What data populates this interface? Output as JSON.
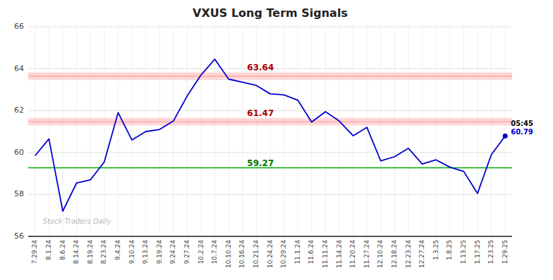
{
  "chart_data": {
    "type": "line",
    "title": "VXUS Long Term Signals",
    "categories": [
      "7.29.24",
      "8.1.24",
      "8.6.24",
      "8.14.24",
      "8.19.24",
      "8.23.24",
      "9.4.24",
      "9.10.24",
      "9.13.24",
      "9.19.24",
      "9.24.24",
      "9.27.24",
      "10.2.24",
      "10.7.24",
      "10.10.24",
      "10.16.24",
      "10.21.24",
      "10.24.24",
      "10.29.24",
      "11.1.24",
      "11.6.24",
      "11.11.24",
      "11.14.24",
      "11.20.24",
      "11.27.24",
      "12.10.24",
      "12.18.24",
      "12.23.24",
      "12.27.24",
      "1.3.25",
      "1.8.25",
      "1.13.25",
      "1.17.25",
      "1.23.25",
      "1.29.25"
    ],
    "values": [
      59.85,
      60.65,
      57.2,
      58.55,
      58.7,
      59.55,
      61.9,
      60.6,
      61.0,
      61.1,
      61.5,
      62.7,
      63.7,
      64.45,
      63.5,
      63.35,
      63.2,
      62.8,
      62.75,
      62.5,
      61.45,
      61.95,
      61.5,
      60.8,
      61.2,
      59.6,
      59.8,
      60.2,
      59.45,
      59.65,
      59.3,
      59.1,
      58.05,
      59.9,
      60.79
    ],
    "color": "#0000cc",
    "reference_lines": [
      {
        "value": 63.64,
        "label": "63.64",
        "color": "#ff9999",
        "label_color": "#aa0000",
        "band": [
          63.46,
          63.82
        ],
        "band_color": "#ffcccc"
      },
      {
        "value": 61.47,
        "label": "61.47",
        "color": "#ff9999",
        "label_color": "#aa0000",
        "band": [
          61.29,
          61.65
        ],
        "band_color": "#ffcccc"
      },
      {
        "value": 59.27,
        "label": "59.27",
        "color": "#00aa00",
        "label_color": "#007700"
      }
    ],
    "annotations": [
      {
        "text": "05:45",
        "color": "#000000"
      }
    ],
    "watermark": "Stock Traders Daily",
    "ylim": [
      56,
      66
    ],
    "yticks": [
      56,
      58,
      60,
      62,
      64,
      66
    ],
    "grid": true
  }
}
